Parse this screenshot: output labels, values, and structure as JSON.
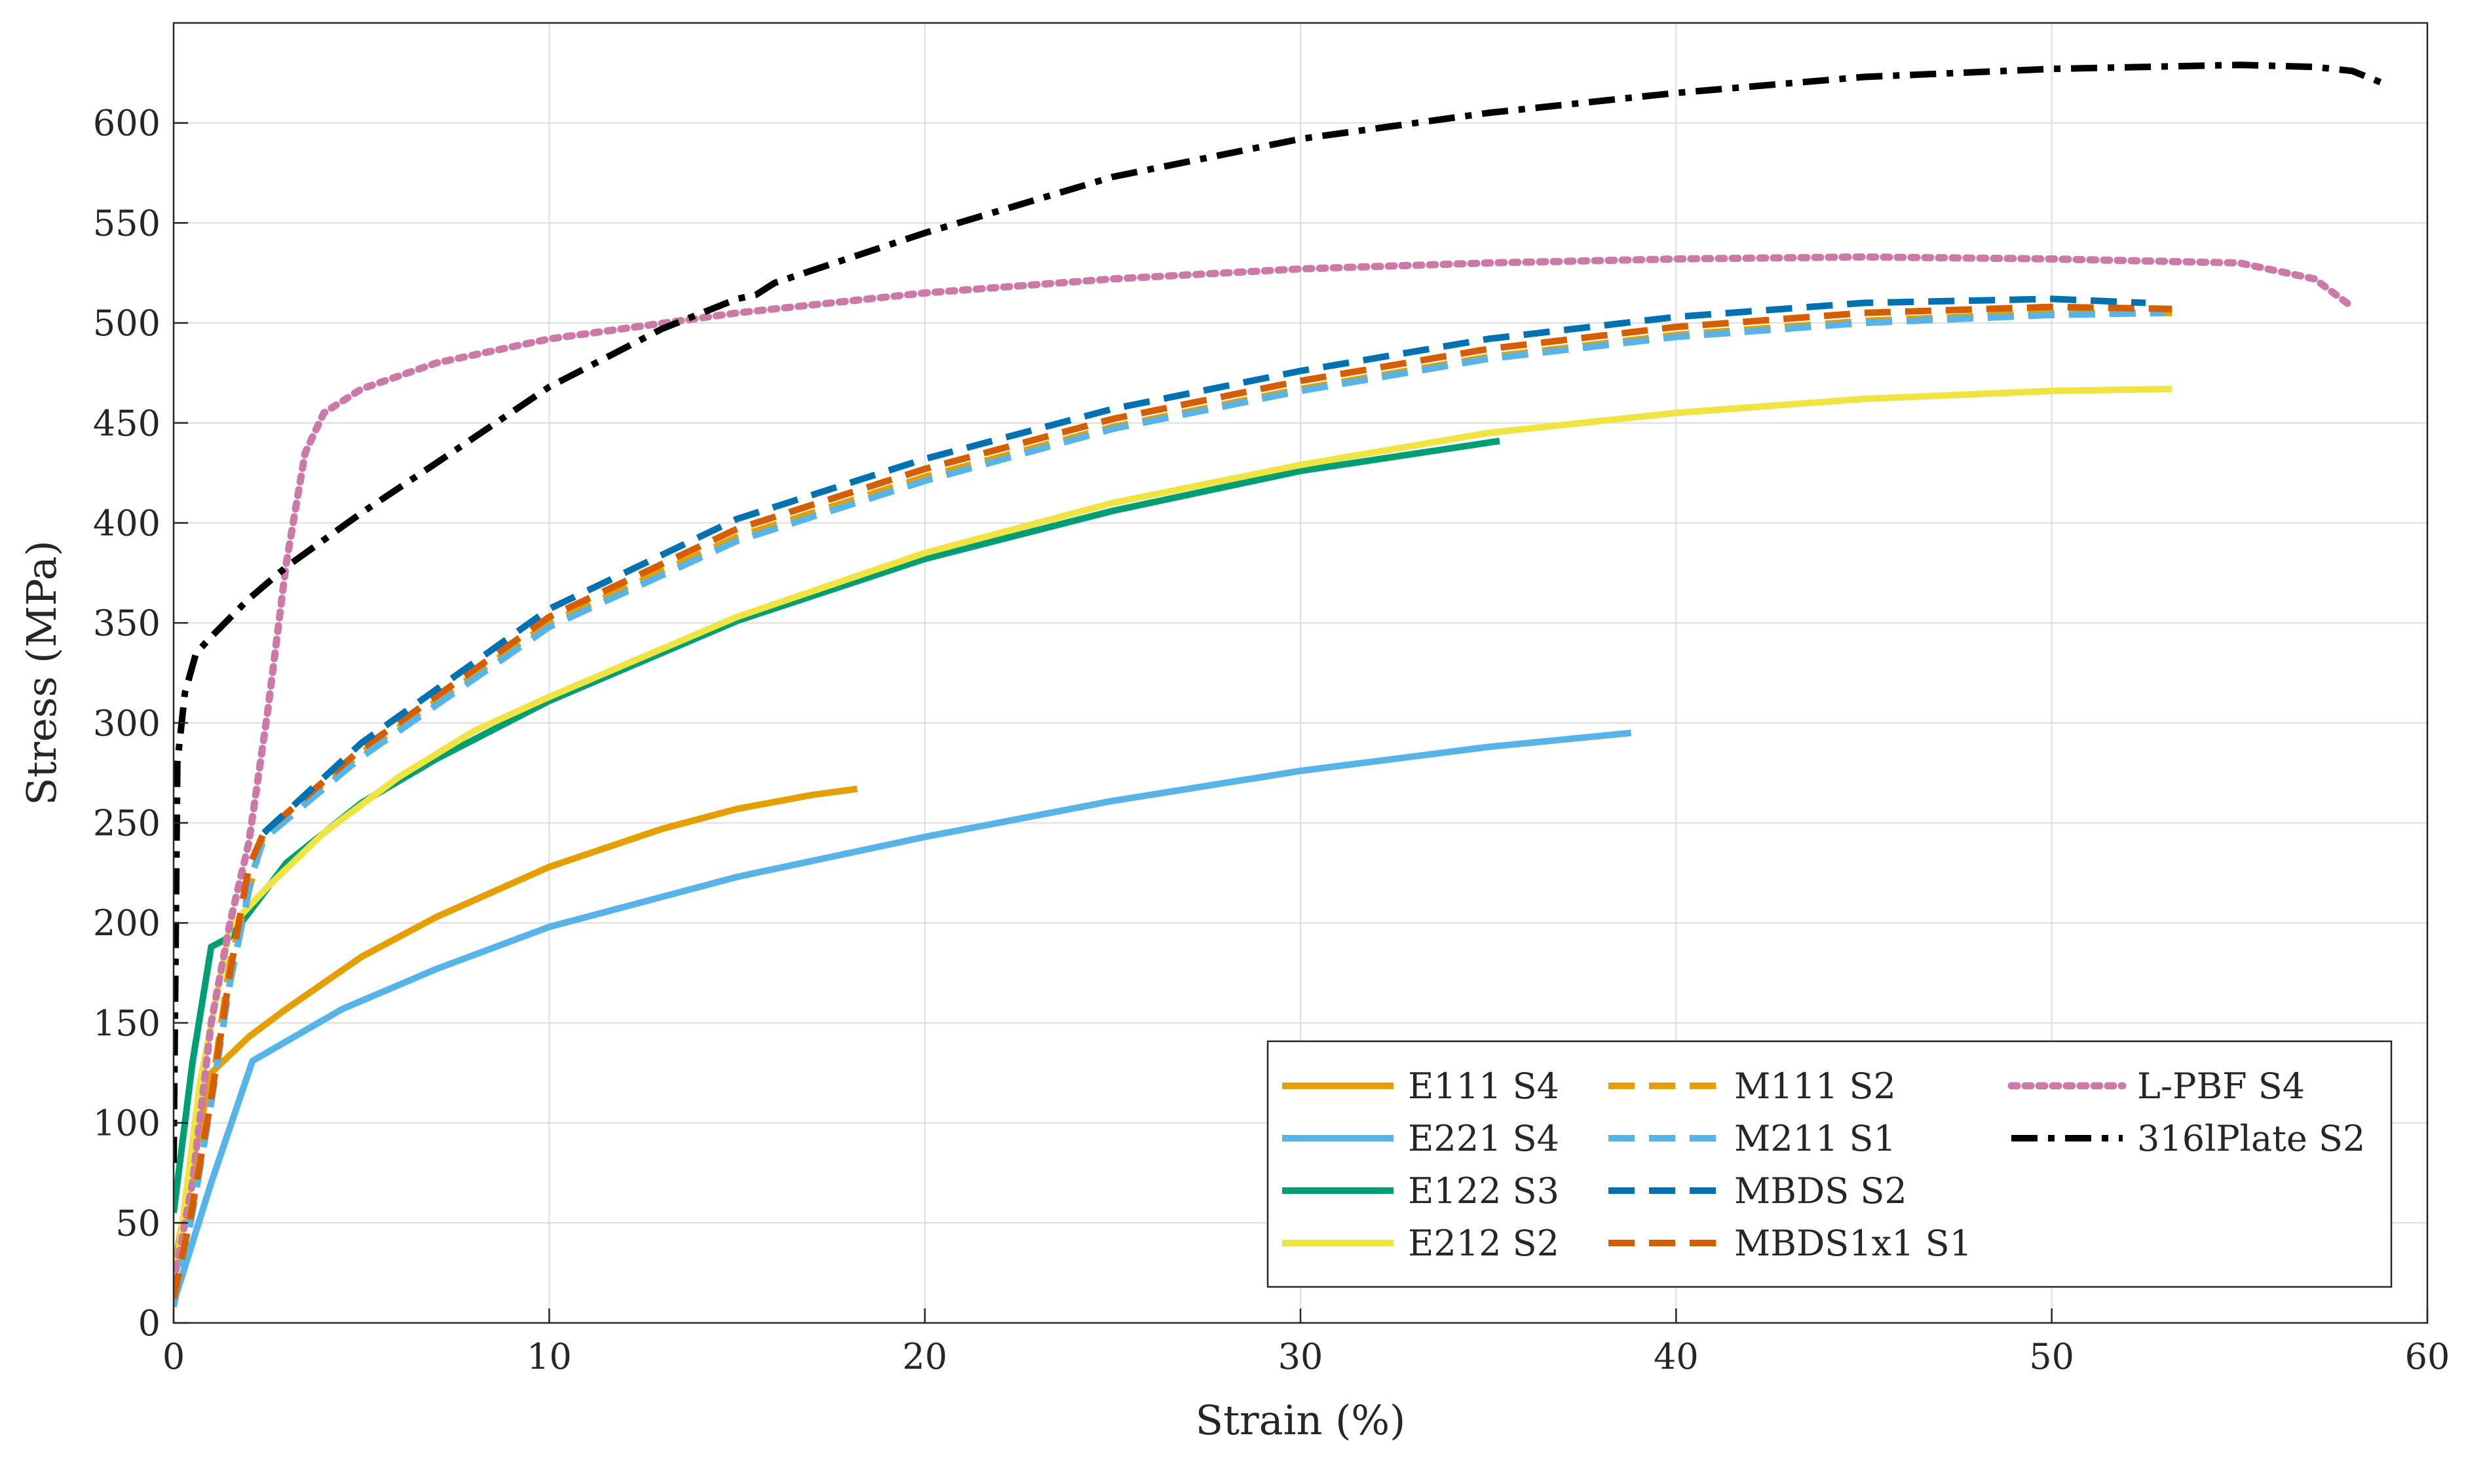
{
  "chart_data": {
    "type": "line",
    "title": "",
    "xlabel": "Strain (%)",
    "ylabel": "Stress (MPa)",
    "xlim": [
      0,
      60
    ],
    "ylim": [
      0,
      650
    ],
    "xticks": [
      0,
      10,
      20,
      30,
      40,
      50,
      60
    ],
    "yticks": [
      0,
      50,
      100,
      150,
      200,
      250,
      300,
      350,
      400,
      450,
      500,
      550,
      600
    ],
    "grid": true,
    "legend": "bottom-right",
    "series": [
      {
        "name": "E111 S4",
        "color": "#E69F00",
        "style": "solid",
        "x": [
          0,
          0.5,
          1,
          2,
          3,
          5,
          7,
          10,
          13,
          15,
          17,
          18.2
        ],
        "y": [
          25,
          80,
          125,
          143,
          157,
          183,
          203,
          228,
          247,
          257,
          264,
          267
        ]
      },
      {
        "name": "E221 S4",
        "color": "#56B4E9",
        "style": "solid",
        "x": [
          0,
          1,
          2.1,
          4.5,
          7,
          10,
          15,
          20,
          25,
          30,
          35,
          38.8
        ],
        "y": [
          10,
          70,
          131,
          157,
          177,
          198,
          223,
          243,
          261,
          276,
          288,
          295
        ]
      },
      {
        "name": "E122 S3",
        "color": "#009E73",
        "style": "solid",
        "x": [
          0,
          0.5,
          1,
          1.5,
          2,
          3,
          5,
          7,
          10,
          15,
          20,
          25,
          30,
          35.3
        ],
        "y": [
          55,
          130,
          188,
          193,
          205,
          230,
          260,
          282,
          311,
          351,
          382,
          406,
          426,
          441
        ]
      },
      {
        "name": "E212 S2",
        "color": "#F0E442",
        "style": "solid",
        "x": [
          0,
          0.7,
          1.5,
          2.5,
          4,
          6,
          8,
          10,
          15,
          20,
          25,
          30,
          35,
          40,
          45,
          50,
          53.2
        ],
        "y": [
          15,
          120,
          198,
          218,
          245,
          273,
          296,
          313,
          353,
          385,
          410,
          429,
          445,
          455,
          462,
          466,
          467
        ]
      },
      {
        "name": "M111 S2",
        "color": "#E69F00",
        "style": "dashed",
        "x": [
          0,
          0.5,
          1,
          1.5,
          2.2,
          2.4,
          5,
          10,
          15,
          20,
          25,
          30,
          35,
          40,
          45,
          50,
          53.2
        ],
        "y": [
          10,
          60,
          115,
          180,
          230,
          245,
          285,
          350,
          393,
          423,
          448,
          467,
          483,
          494,
          501,
          505,
          505
        ]
      },
      {
        "name": "M211 S1",
        "color": "#56B4E9",
        "style": "dashed",
        "x": [
          0,
          0.5,
          1,
          1.5,
          2.1,
          2.4,
          5,
          10,
          15,
          20,
          25,
          30,
          35,
          40,
          45,
          50,
          53
        ],
        "y": [
          8,
          55,
          110,
          170,
          225,
          242,
          283,
          348,
          391,
          421,
          447,
          466,
          482,
          493,
          500,
          504,
          505
        ]
      },
      {
        "name": "MBDS S2",
        "color": "#0072B2",
        "style": "dashed",
        "x": [
          2.4,
          5,
          10,
          15,
          20,
          25,
          30,
          35,
          40,
          45,
          50,
          52.5
        ],
        "y": [
          245,
          290,
          357,
          402,
          432,
          457,
          476,
          492,
          503,
          510,
          512,
          510
        ]
      },
      {
        "name": "MBDS1x1 S1",
        "color": "#D55E00",
        "style": "dashed",
        "x": [
          0,
          0.5,
          1,
          1.5,
          2,
          2.4,
          5,
          10,
          15,
          20,
          25,
          30,
          35,
          40,
          45,
          50,
          53.2
        ],
        "y": [
          12,
          58,
          112,
          175,
          228,
          245,
          287,
          353,
          397,
          427,
          452,
          471,
          487,
          498,
          505,
          508,
          507
        ]
      },
      {
        "name": "L-PBF S4",
        "color": "#CC79A7",
        "style": "dotted",
        "x": [
          0,
          0.5,
          1,
          1.5,
          2,
          2.5,
          3,
          3.5,
          4,
          5,
          7,
          10,
          15,
          20,
          25,
          30,
          35,
          40,
          45,
          50,
          55,
          57,
          58
        ],
        "y": [
          20,
          70,
          150,
          200,
          240,
          305,
          380,
          435,
          455,
          467,
          480,
          492,
          505,
          515,
          522,
          527,
          530,
          532,
          533,
          532,
          530,
          522,
          508
        ]
      },
      {
        "name": "316lPlate S2",
        "color": "#000000",
        "style": "dashdot",
        "x": [
          0,
          0.1,
          0.3,
          0.6,
          1,
          2,
          3,
          5,
          7,
          10,
          13,
          15,
          15.5,
          16,
          20,
          25,
          30,
          35,
          40,
          45,
          50,
          55,
          57,
          58,
          58.8
        ],
        "y": [
          80,
          280,
          315,
          335,
          343,
          362,
          378,
          405,
          430,
          468,
          497,
          512,
          514,
          520,
          545,
          573,
          592,
          605,
          615,
          623,
          627,
          629,
          628,
          626,
          620
        ]
      }
    ]
  }
}
